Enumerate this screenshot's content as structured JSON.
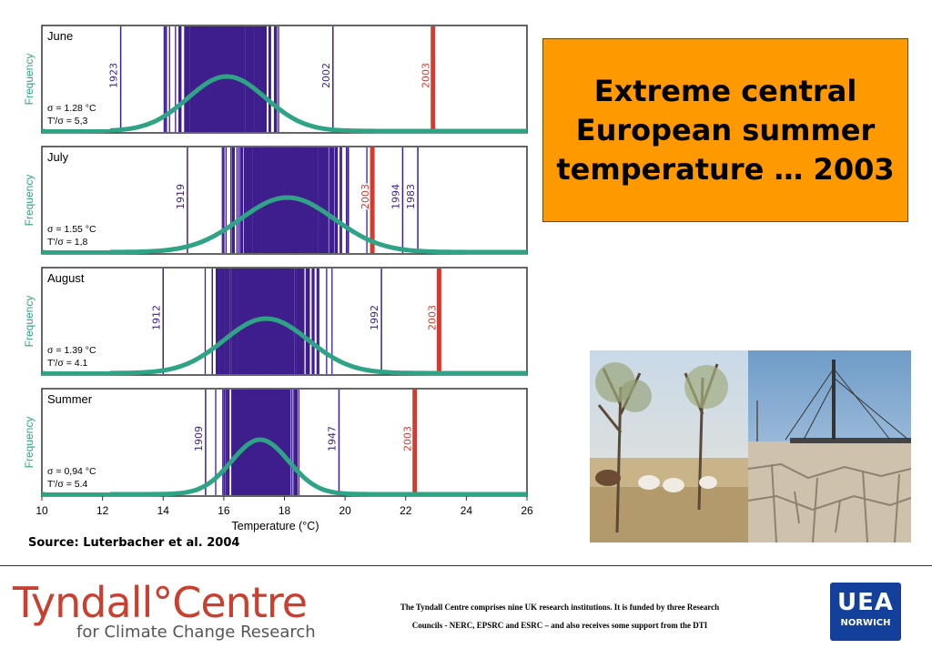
{
  "title": "Extreme central European summer temperature … 2003",
  "source": "Source: Luterbacher et al. 2004",
  "footer": {
    "line1": "The Tyndall Centre comprises nine UK research institutions.   It is funded by three Research",
    "line2": "Councils - NERC, EPSRC and ESRC – and also receives some support from the DTI"
  },
  "logo": {
    "main": "Tyndall°Centre",
    "sub": "for Climate Change Research"
  },
  "uea_logo": {
    "top": "UEA",
    "bottom": "NORWICH"
  },
  "colors": {
    "bars": "#3e1f8c",
    "curve": "#2fa386",
    "highlight": "#d63a2f",
    "ylabel": "#2fa386",
    "title_bg": "#ff9900"
  },
  "chart_data": {
    "type": "bar",
    "xlabel": "Temperature (°C)",
    "xlim": [
      10,
      26
    ],
    "xticks": [
      10,
      12,
      14,
      16,
      18,
      20,
      22,
      24,
      26
    ],
    "panels": [
      {
        "name": "June",
        "ylabel": "Frequency",
        "sigma": "σ = 1.28 °C",
        "ratio": "T'/σ = 5,3",
        "mean": 16.1,
        "labels": [
          {
            "year": "1923",
            "x": 12.6,
            "color": "bars"
          },
          {
            "year": "2002",
            "x": 19.6,
            "color": "bars"
          },
          {
            "year": "2003",
            "x": 22.9,
            "color": "highlight"
          }
        ]
      },
      {
        "name": "July",
        "ylabel": "Frequency",
        "sigma": "σ = 1.55 °C",
        "ratio": "T'/σ = 1,8",
        "mean": 18.1,
        "labels": [
          {
            "year": "1919",
            "x": 14.8,
            "color": "bars"
          },
          {
            "year": "1994",
            "x": 21.9,
            "color": "bars"
          },
          {
            "year": "1983",
            "x": 22.4,
            "color": "bars"
          },
          {
            "year": "2003",
            "x": 20.9,
            "color": "highlight"
          }
        ]
      },
      {
        "name": "August",
        "ylabel": "Frequency",
        "sigma": "σ = 1.39 °C",
        "ratio": "T'/σ = 4.1",
        "mean": 17.4,
        "labels": [
          {
            "year": "1912",
            "x": 14.0,
            "color": "bars"
          },
          {
            "year": "1992",
            "x": 21.2,
            "color": "bars"
          },
          {
            "year": "2003",
            "x": 23.1,
            "color": "highlight"
          }
        ]
      },
      {
        "name": "Summer",
        "ylabel": "Frequency",
        "sigma": "σ = 0,94 °C",
        "ratio": "T'/σ = 5.4",
        "mean": 17.2,
        "labels": [
          {
            "year": "1909",
            "x": 15.4,
            "color": "bars"
          },
          {
            "year": "1947",
            "x": 19.8,
            "color": "bars"
          },
          {
            "year": "2003",
            "x": 22.3,
            "color": "highlight"
          }
        ]
      }
    ]
  }
}
